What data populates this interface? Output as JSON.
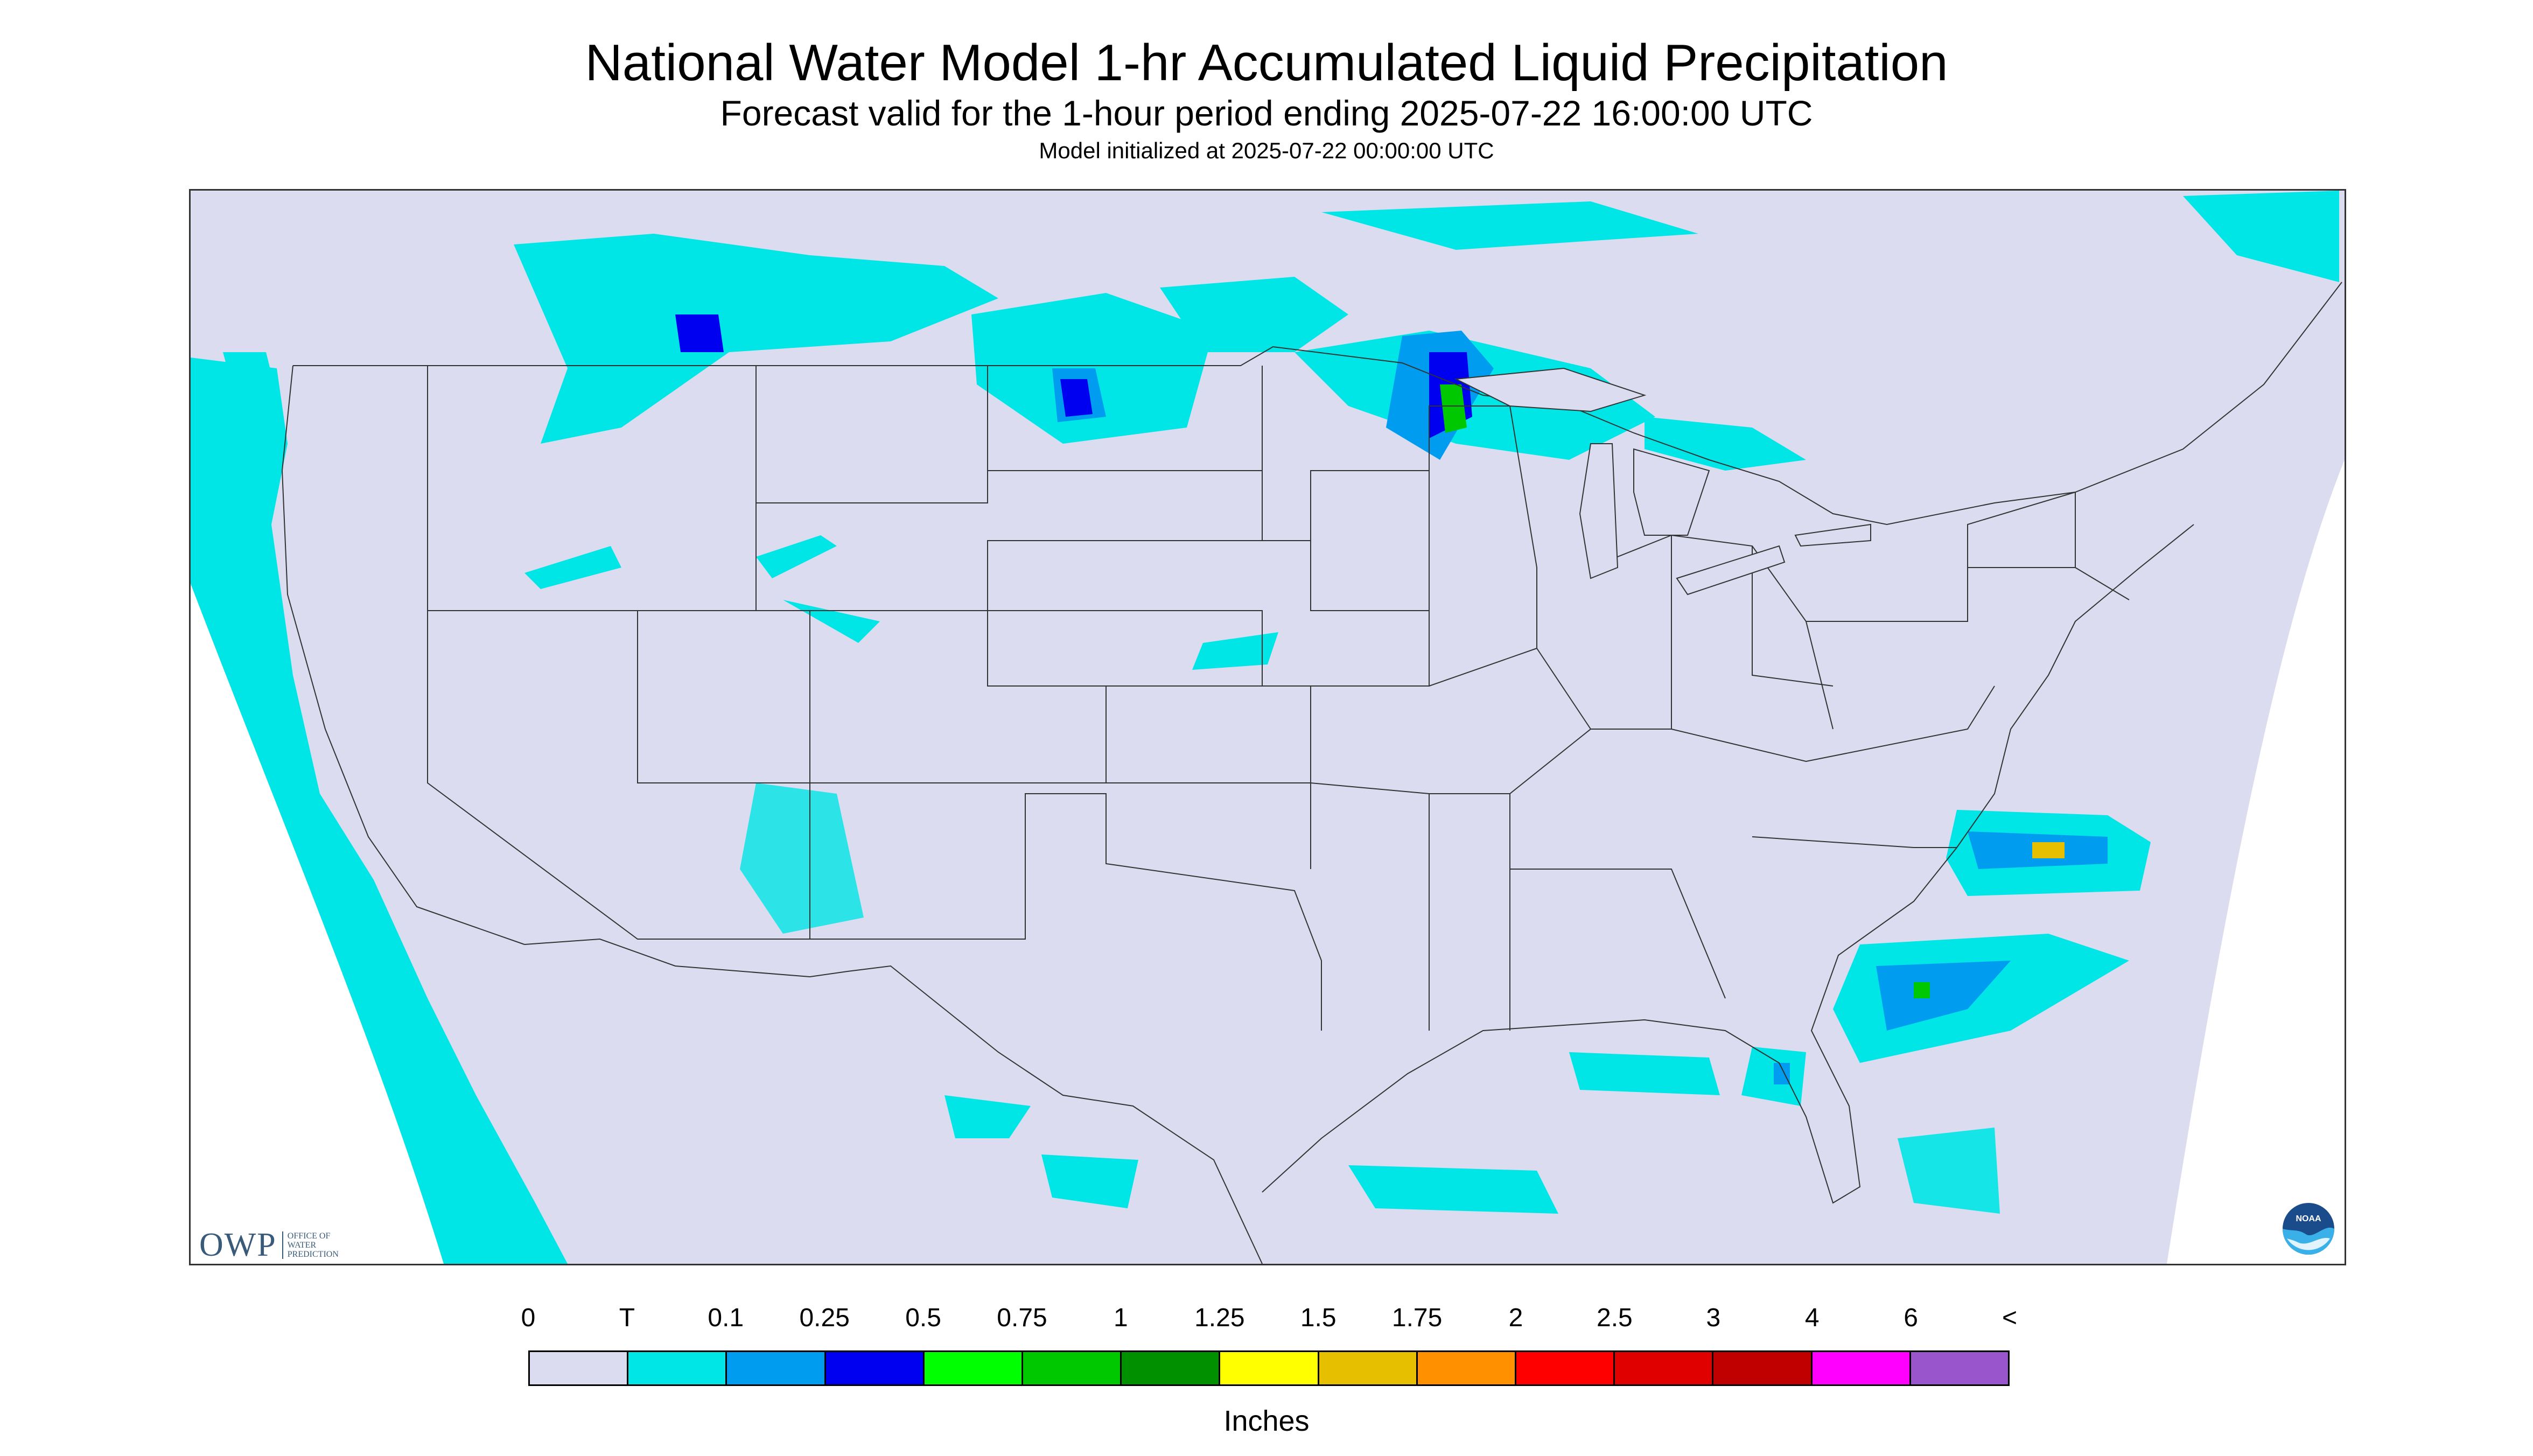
{
  "header": {
    "title": "National Water Model 1-hr Accumulated Liquid Precipitation",
    "subtitle": "Forecast valid for the 1-hour period ending 2025-07-22 16:00:00 UTC",
    "init_note": "Model initialized at 2025-07-22 00:00:00 UTC"
  },
  "map": {
    "background_color": "#dcdcf0",
    "boundary_color": "#333333",
    "precip_regions": [
      {
        "region": "Pacific coast / offshore",
        "level": "T"
      },
      {
        "region": "Northern Rockies / Montana",
        "level": "T",
        "max_level": "0.25"
      },
      {
        "region": "North Dakota",
        "level": "0.1",
        "max_level": "0.5"
      },
      {
        "region": "Minnesota / Lake Superior",
        "level": "0.25",
        "max_level": "0.75"
      },
      {
        "region": "Carolina offshore",
        "level": "0.25",
        "max_level": "1.75"
      },
      {
        "region": "Gulf of Mexico",
        "level": "T",
        "max_level": "1"
      },
      {
        "region": "Southwest",
        "level": "T"
      }
    ]
  },
  "logos": {
    "owp": {
      "text": "OWP",
      "sub": [
        "OFFICE OF",
        "WATER",
        "PREDICTION"
      ]
    },
    "noaa": {
      "text": "NOAA"
    }
  },
  "legend": {
    "labels": [
      "0",
      "T",
      "0.1",
      "0.25",
      "0.5",
      "0.75",
      "1",
      "1.25",
      "1.5",
      "1.75",
      "2",
      "2.5",
      "3",
      "4",
      "6",
      "<"
    ],
    "colors": [
      "#dcdcf0",
      "#00e6e6",
      "#009cf0",
      "#0000f0",
      "#00ff00",
      "#00c800",
      "#009000",
      "#ffff00",
      "#e6c000",
      "#ff9000",
      "#ff0000",
      "#e00000",
      "#c00000",
      "#ff00ff",
      "#9955cc"
    ],
    "units": "Inches"
  }
}
